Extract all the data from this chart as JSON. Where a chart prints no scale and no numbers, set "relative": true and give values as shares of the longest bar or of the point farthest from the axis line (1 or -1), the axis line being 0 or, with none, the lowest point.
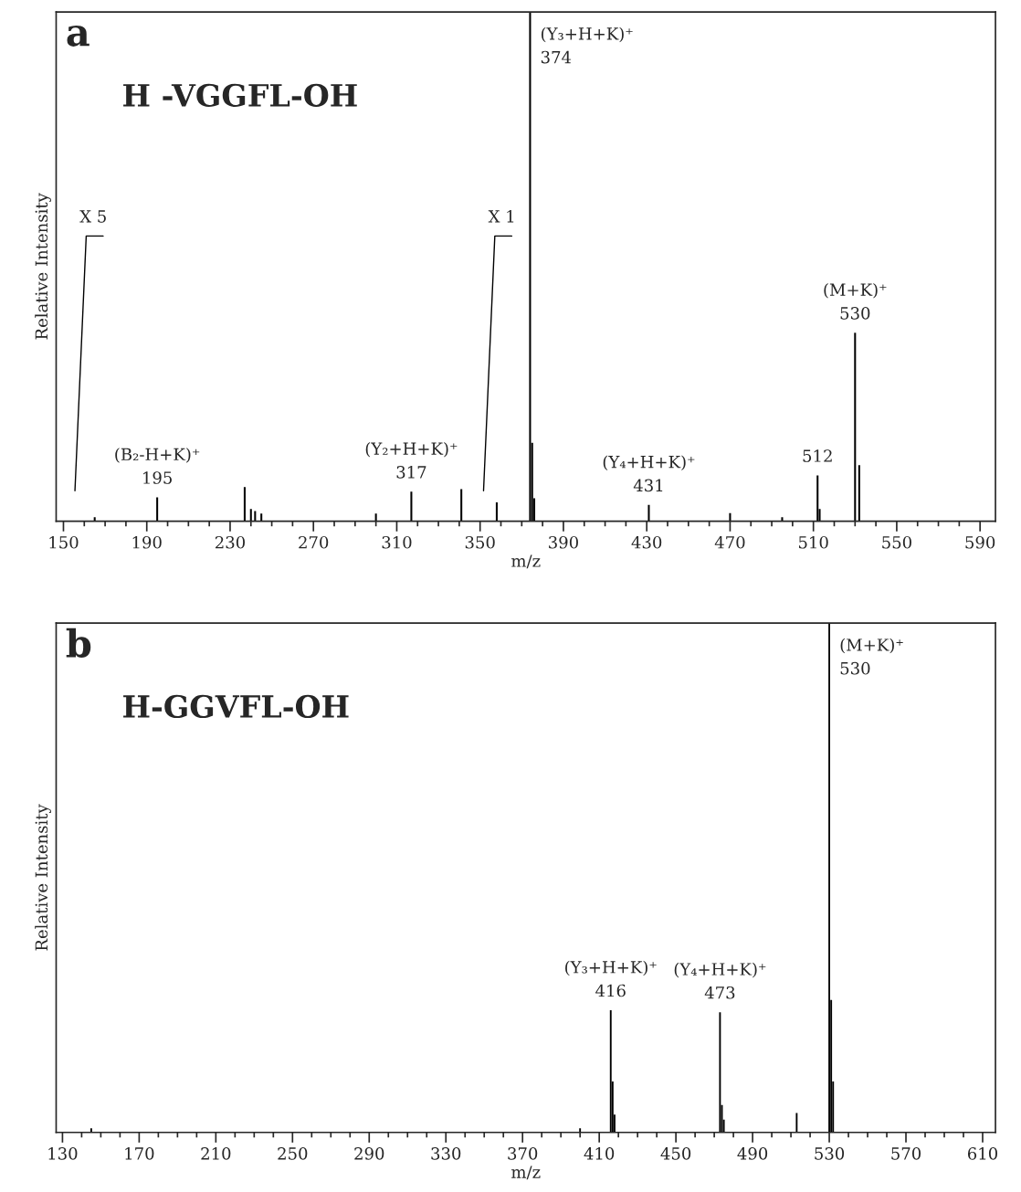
{
  "chart_data": [
    {
      "type": "bar",
      "title": "a",
      "subtitle": "H -VGGFL-OH",
      "xlabel": "m/z",
      "ylabel": "Relative Intensity",
      "relative": true,
      "color": "#000000",
      "x": [
        165,
        195,
        237,
        240,
        242,
        245,
        300,
        317,
        341,
        358,
        374,
        375,
        376,
        431,
        470,
        495,
        512,
        513,
        530,
        532
      ],
      "values": [
        0.008,
        0.047,
        0.067,
        0.024,
        0.02,
        0.015,
        0.015,
        0.058,
        0.063,
        0.037,
        1,
        0.154,
        0.045,
        0.032,
        0.016,
        0.008,
        0.09,
        0.024,
        0.37,
        0.11
      ],
      "xlim": [
        146.5,
        597.4
      ],
      "xticks": [
        150,
        190,
        230,
        270,
        310,
        350,
        390,
        430,
        470,
        510,
        550,
        590
      ],
      "annotations": [
        {
          "text": "(B₂-H+K)⁺\n195",
          "x": 195,
          "y": 0.047
        },
        {
          "text": "(Y₂+H+K)⁺\n317",
          "x": 317,
          "y": 0.058
        },
        {
          "text": "(Y₃+H+K)⁺\n374",
          "x": 374,
          "y": 1
        },
        {
          "text": "(Y₄+H+K)⁺\n431",
          "x": 431,
          "y": 0.032
        },
        {
          "text": "512",
          "x": 512,
          "y": 0.09
        },
        {
          "text": "(M+K)⁺\n530",
          "x": 530,
          "y": 0.37
        },
        "X 5",
        "X 1"
      ]
    },
    {
      "type": "bar",
      "title": "b",
      "subtitle": "H-GGVFL-OH",
      "xlabel": "m/z",
      "ylabel": "Relative Intensity",
      "relative": true,
      "color": "#000000",
      "x": [
        145,
        400,
        416,
        417,
        418,
        473,
        474,
        475,
        513,
        514,
        530,
        531,
        532
      ],
      "values": [
        0.008,
        0.008,
        0.24,
        0.1,
        0.035,
        0.236,
        0.054,
        0.025,
        0.038,
        null,
        1,
        0.26,
        0.1
      ],
      "xlim": [
        126.7,
        616.7
      ],
      "xticks": [
        130,
        170,
        210,
        250,
        290,
        330,
        370,
        410,
        450,
        490,
        530,
        570,
        610
      ],
      "annotations": [
        {
          "text": "(Y₃+H+K)⁺\n416",
          "x": 416,
          "y": 0.24
        },
        {
          "text": "(Y₄+H+K)⁺\n473",
          "x": 473,
          "y": 0.236
        },
        {
          "text": "(M+K)⁺\n530",
          "x": 530,
          "y": 1
        }
      ]
    }
  ]
}
